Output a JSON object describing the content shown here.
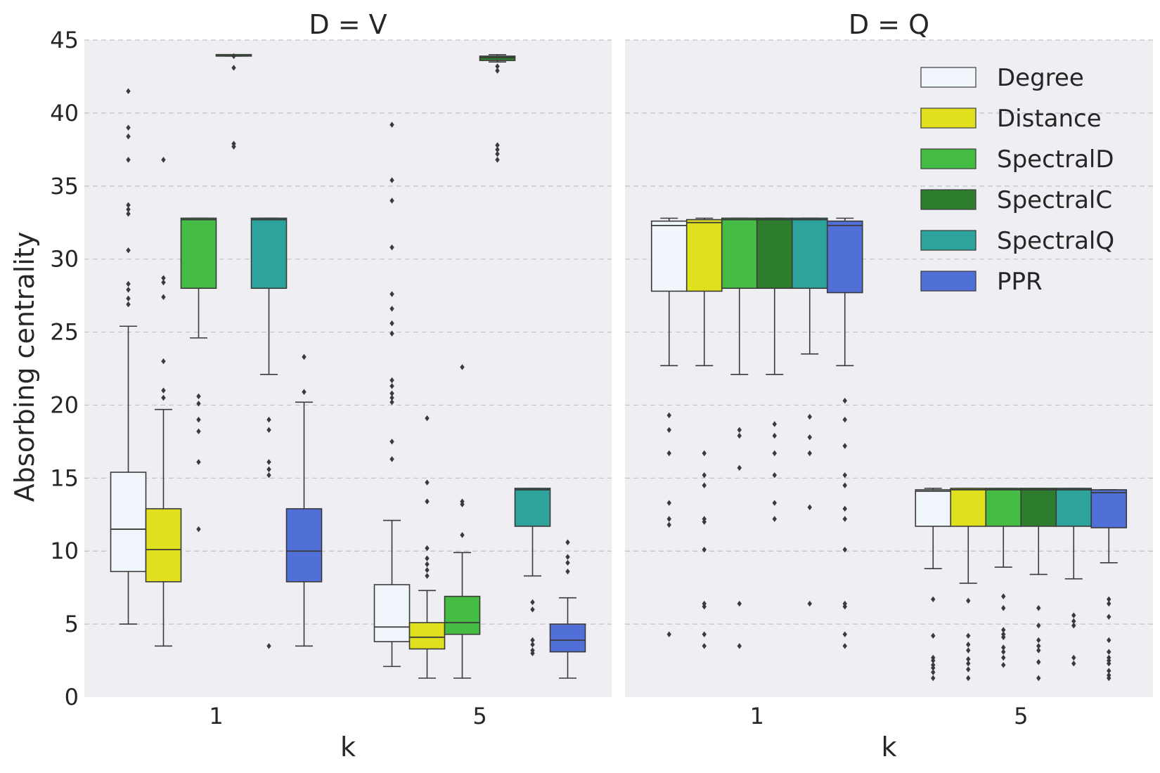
{
  "chart_data": {
    "type": "box",
    "ylabel": "Absorbing centrality",
    "ylim": [
      0,
      45
    ],
    "yticks": [
      0,
      5,
      10,
      15,
      20,
      25,
      30,
      35,
      40,
      45
    ],
    "legend": {
      "placement": "top-right of right panel",
      "entries": [
        {
          "name": "Degree",
          "color": "#f0f6fc"
        },
        {
          "name": "Distance",
          "color": "#e0e01e"
        },
        {
          "name": "SpectralD",
          "color": "#45bd45"
        },
        {
          "name": "SpectralC",
          "color": "#2e7d2e"
        },
        {
          "name": "SpectralQ",
          "color": "#2ea39b"
        },
        {
          "name": "PPR",
          "color": "#5070d8"
        }
      ]
    },
    "panels": [
      {
        "title": "D = V",
        "xlabel": "k",
        "categories": [
          "1",
          "5"
        ],
        "groups": [
          [
            {
              "series": "Degree",
              "q1": 8.6,
              "median": 11.5,
              "q3": 15.4,
              "whislo": 5.0,
              "whishi": 25.4,
              "fliers": [
                41.5,
                39.0,
                38.4,
                36.8,
                33.7,
                33.4,
                33.1,
                30.6,
                28.3,
                27.9,
                27.3,
                26.9
              ]
            },
            {
              "series": "Distance",
              "q1": 7.9,
              "median": 10.1,
              "q3": 12.9,
              "whislo": 3.5,
              "whishi": 19.7,
              "fliers": [
                36.8,
                28.7,
                28.4,
                27.4,
                23.0,
                21.0,
                20.5
              ]
            },
            {
              "series": "SpectralD",
              "q1": 28.0,
              "median": 32.7,
              "q3": 32.8,
              "whislo": 24.6,
              "whishi": 32.8,
              "fliers": [
                20.6,
                20.1,
                19.0,
                18.2,
                16.1,
                11.5
              ]
            },
            {
              "series": "SpectralC",
              "q1": 43.9,
              "median": 44.0,
              "q3": 44.0,
              "whislo": 43.9,
              "whishi": 44.0,
              "fliers": [
                43.9,
                43.1,
                37.9,
                37.7
              ]
            },
            {
              "series": "SpectralQ",
              "q1": 28.0,
              "median": 32.7,
              "q3": 32.8,
              "whislo": 22.1,
              "whishi": 32.8,
              "fliers": [
                19.0,
                18.3,
                16.1,
                15.6,
                15.2,
                3.5
              ]
            },
            {
              "series": "PPR",
              "q1": 7.9,
              "median": 10.0,
              "q3": 12.9,
              "whislo": 3.5,
              "whishi": 20.2,
              "fliers": [
                23.3,
                20.9
              ]
            }
          ],
          [
            {
              "series": "Degree",
              "q1": 3.8,
              "median": 4.8,
              "q3": 7.7,
              "whislo": 2.1,
              "whishi": 12.1,
              "fliers": [
                39.2,
                35.4,
                34.0,
                30.8,
                27.6,
                26.6,
                25.6,
                24.9,
                21.7,
                21.3,
                20.8,
                20.5,
                20.2,
                17.5,
                16.3
              ]
            },
            {
              "series": "Distance",
              "q1": 3.3,
              "median": 4.1,
              "q3": 5.1,
              "whislo": 1.3,
              "whishi": 7.3,
              "fliers": [
                19.1,
                14.7,
                13.4,
                10.2,
                9.5,
                9.1,
                8.7,
                8.3
              ]
            },
            {
              "series": "SpectralD",
              "q1": 4.3,
              "median": 5.1,
              "q3": 6.9,
              "whislo": 1.3,
              "whishi": 9.9,
              "fliers": [
                22.6,
                13.4,
                13.2,
                11.1
              ]
            },
            {
              "series": "SpectralC",
              "q1": 43.6,
              "median": 43.8,
              "q3": 43.9,
              "whislo": 43.5,
              "whishi": 44.0,
              "fliers": [
                43.2,
                42.9,
                37.8,
                37.5,
                37.2,
                36.8
              ]
            },
            {
              "series": "SpectralQ",
              "q1": 11.7,
              "median": 14.2,
              "q3": 14.3,
              "whislo": 8.3,
              "whishi": 14.3,
              "fliers": [
                6.5,
                6.0,
                3.9,
                3.6,
                3.2,
                3.0
              ]
            },
            {
              "series": "PPR",
              "q1": 3.1,
              "median": 3.9,
              "q3": 5.0,
              "whislo": 1.3,
              "whishi": 6.8,
              "fliers": [
                10.6,
                9.6,
                9.2,
                8.6
              ]
            }
          ]
        ]
      },
      {
        "title": "D = Q",
        "xlabel": "k",
        "categories": [
          "1",
          "5"
        ],
        "groups": [
          [
            {
              "series": "Degree",
              "q1": 27.8,
              "median": 32.3,
              "q3": 32.6,
              "whislo": 22.7,
              "whishi": 32.8,
              "fliers": [
                19.3,
                18.3,
                16.7,
                13.3,
                12.2,
                11.8,
                4.3
              ]
            },
            {
              "series": "Distance",
              "q1": 27.8,
              "median": 32.5,
              "q3": 32.7,
              "whislo": 22.7,
              "whishi": 32.8,
              "fliers": [
                16.7,
                15.2,
                14.5,
                12.2,
                12.0,
                10.1,
                6.4,
                6.2,
                4.3,
                3.5
              ]
            },
            {
              "series": "SpectralD",
              "q1": 28.0,
              "median": 32.7,
              "q3": 32.8,
              "whislo": 22.1,
              "whishi": 32.8,
              "fliers": [
                18.3,
                17.9,
                15.7,
                6.4,
                3.5
              ]
            },
            {
              "series": "SpectralC",
              "q1": 28.0,
              "median": 32.7,
              "q3": 32.8,
              "whislo": 22.1,
              "whishi": 32.8,
              "fliers": [
                18.7,
                17.9,
                16.7,
                15.2,
                13.3,
                12.2
              ]
            },
            {
              "series": "SpectralQ",
              "q1": 28.0,
              "median": 32.7,
              "q3": 32.8,
              "whislo": 23.5,
              "whishi": 32.8,
              "fliers": [
                19.2,
                17.8,
                16.7,
                13.0,
                6.4
              ]
            },
            {
              "series": "PPR",
              "q1": 27.7,
              "median": 32.3,
              "q3": 32.6,
              "whislo": 22.7,
              "whishi": 32.8,
              "fliers": [
                20.3,
                19.0,
                17.2,
                15.2,
                14.5,
                12.9,
                12.2,
                10.1,
                6.4,
                6.2,
                4.3,
                3.5
              ]
            }
          ],
          [
            {
              "series": "Degree",
              "q1": 11.7,
              "median": 14.1,
              "q3": 14.2,
              "whislo": 8.8,
              "whishi": 14.3,
              "fliers": [
                6.7,
                4.2,
                2.7,
                2.5,
                2.2,
                2.0,
                1.7,
                1.3
              ]
            },
            {
              "series": "Distance",
              "q1": 11.7,
              "median": 14.2,
              "q3": 14.3,
              "whislo": 7.8,
              "whishi": 14.3,
              "fliers": [
                6.6,
                4.2,
                3.6,
                3.2,
                2.6,
                2.3,
                1.9,
                1.3
              ]
            },
            {
              "series": "SpectralD",
              "q1": 11.7,
              "median": 14.2,
              "q3": 14.3,
              "whislo": 8.9,
              "whishi": 14.3,
              "fliers": [
                6.9,
                6.1,
                4.6,
                4.3,
                4.1,
                3.4,
                3.1,
                2.7,
                2.2
              ]
            },
            {
              "series": "SpectralC",
              "q1": 11.7,
              "median": 14.2,
              "q3": 14.3,
              "whislo": 8.4,
              "whishi": 14.3,
              "fliers": [
                6.1,
                4.9,
                3.9,
                3.5,
                3.2,
                2.4,
                1.3
              ]
            },
            {
              "series": "SpectralQ",
              "q1": 11.7,
              "median": 14.2,
              "q3": 14.3,
              "whislo": 8.1,
              "whishi": 14.3,
              "fliers": [
                5.6,
                5.2,
                4.9,
                2.7,
                2.3
              ]
            },
            {
              "series": "PPR",
              "q1": 11.6,
              "median": 14.0,
              "q3": 14.2,
              "whislo": 9.2,
              "whishi": 14.2,
              "fliers": [
                6.7,
                6.4,
                5.5,
                3.9,
                3.1,
                2.7,
                2.5,
                2.3,
                1.8,
                1.5,
                1.3
              ]
            }
          ]
        ]
      }
    ]
  }
}
